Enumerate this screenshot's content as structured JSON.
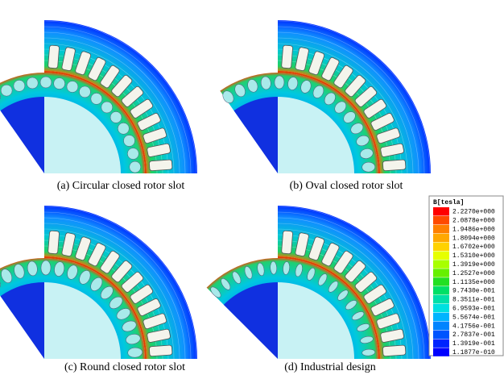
{
  "panels": [
    {
      "caption": "(a) Circular closed rotor slot"
    },
    {
      "caption": "(b) Oval closed rotor slot"
    },
    {
      "caption": "(c) Round closed rotor slot"
    },
    {
      "caption": "(d) Industrial design"
    }
  ],
  "legend": {
    "title": "B[tesla]",
    "entries": [
      {
        "label": "2.2270e+000",
        "color": "#ff0000"
      },
      {
        "label": "2.0878e+000",
        "color": "#ff4a00"
      },
      {
        "label": "1.9486e+000",
        "color": "#ff8000"
      },
      {
        "label": "1.8094e+000",
        "color": "#ffa800"
      },
      {
        "label": "1.6702e+000",
        "color": "#ffd200"
      },
      {
        "label": "1.5310e+000",
        "color": "#e6ff00"
      },
      {
        "label": "1.3919e+000",
        "color": "#a8ff00"
      },
      {
        "label": "1.2527e+000",
        "color": "#66f000"
      },
      {
        "label": "1.1135e+000",
        "color": "#22e022"
      },
      {
        "label": "9.7430e-001",
        "color": "#00e066"
      },
      {
        "label": "8.3511e-001",
        "color": "#00e0a8"
      },
      {
        "label": "6.9593e-001",
        "color": "#00e0e0"
      },
      {
        "label": "5.5674e-001",
        "color": "#00b4ff"
      },
      {
        "label": "4.1756e-001",
        "color": "#0084ff"
      },
      {
        "label": "2.7837e-001",
        "color": "#0054ff"
      },
      {
        "label": "1.3919e-001",
        "color": "#0024ff"
      },
      {
        "label": "1.1877e-010",
        "color": "#0000ff"
      }
    ]
  }
}
